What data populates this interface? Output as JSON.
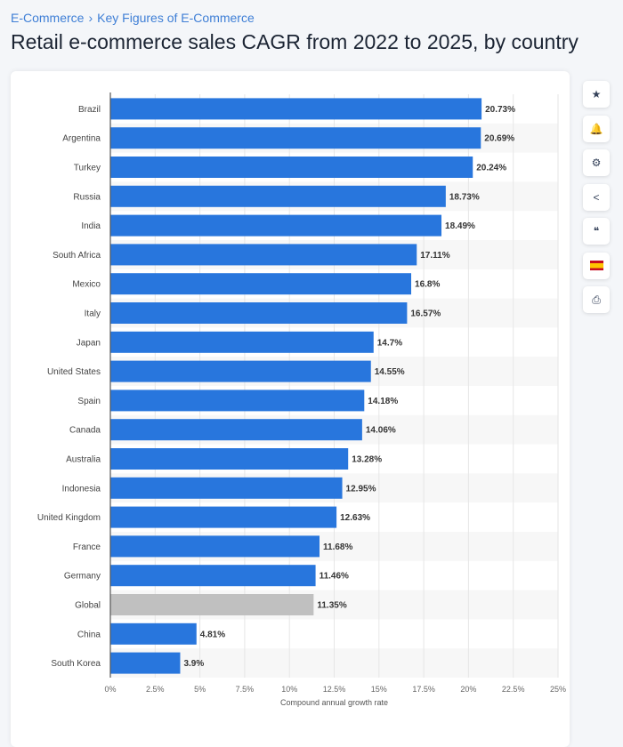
{
  "breadcrumb": [
    "E-Commerce",
    "Key Figures of E-Commerce"
  ],
  "breadcrumb_separator": "›",
  "page_title": "Retail e-commerce sales CAGR from 2022 to 2025, by country",
  "sidebar_tools": [
    {
      "name": "star-icon",
      "glyph": "★"
    },
    {
      "name": "bell-icon",
      "glyph": "🔔"
    },
    {
      "name": "gear-icon",
      "glyph": "⚙"
    },
    {
      "name": "share-icon",
      "glyph": "<"
    },
    {
      "name": "quote-icon",
      "glyph": "❝"
    },
    {
      "name": "spain-flag-icon",
      "glyph": ""
    },
    {
      "name": "print-icon",
      "glyph": "⎙"
    }
  ],
  "colors": {
    "bar": "#2876dd",
    "highlight_bar": "#c0c0c0",
    "band": "#f7f7f7",
    "grid": "#e6e6e6"
  },
  "chart_data": {
    "type": "bar",
    "orientation": "horizontal",
    "categories": [
      "Brazil",
      "Argentina",
      "Turkey",
      "Russia",
      "India",
      "South Africa",
      "Mexico",
      "Italy",
      "Japan",
      "United States",
      "Spain",
      "Canada",
      "Australia",
      "Indonesia",
      "United Kingdom",
      "France",
      "Germany",
      "Global",
      "China",
      "South Korea"
    ],
    "values": [
      20.73,
      20.69,
      20.24,
      18.73,
      18.49,
      17.11,
      16.8,
      16.57,
      14.7,
      14.55,
      14.18,
      14.06,
      13.28,
      12.95,
      12.63,
      11.68,
      11.46,
      11.35,
      4.81,
      3.9
    ],
    "data_labels": [
      "20.73%",
      "20.69%",
      "20.24%",
      "18.73%",
      "18.49%",
      "17.11%",
      "16.8%",
      "16.57%",
      "14.7%",
      "14.55%",
      "14.18%",
      "14.06%",
      "13.28%",
      "12.95%",
      "12.63%",
      "11.68%",
      "11.46%",
      "11.35%",
      "4.81%",
      "3.9%"
    ],
    "highlighted": [
      "Global"
    ],
    "xlabel": "Compound annual growth rate",
    "ylabel": "",
    "xlim": [
      0,
      25
    ],
    "xticks": [
      "0%",
      "2.5%",
      "5%",
      "7.5%",
      "10%",
      "12.5%",
      "15%",
      "17.5%",
      "20%",
      "22.5%",
      "25%"
    ],
    "grid": true
  }
}
